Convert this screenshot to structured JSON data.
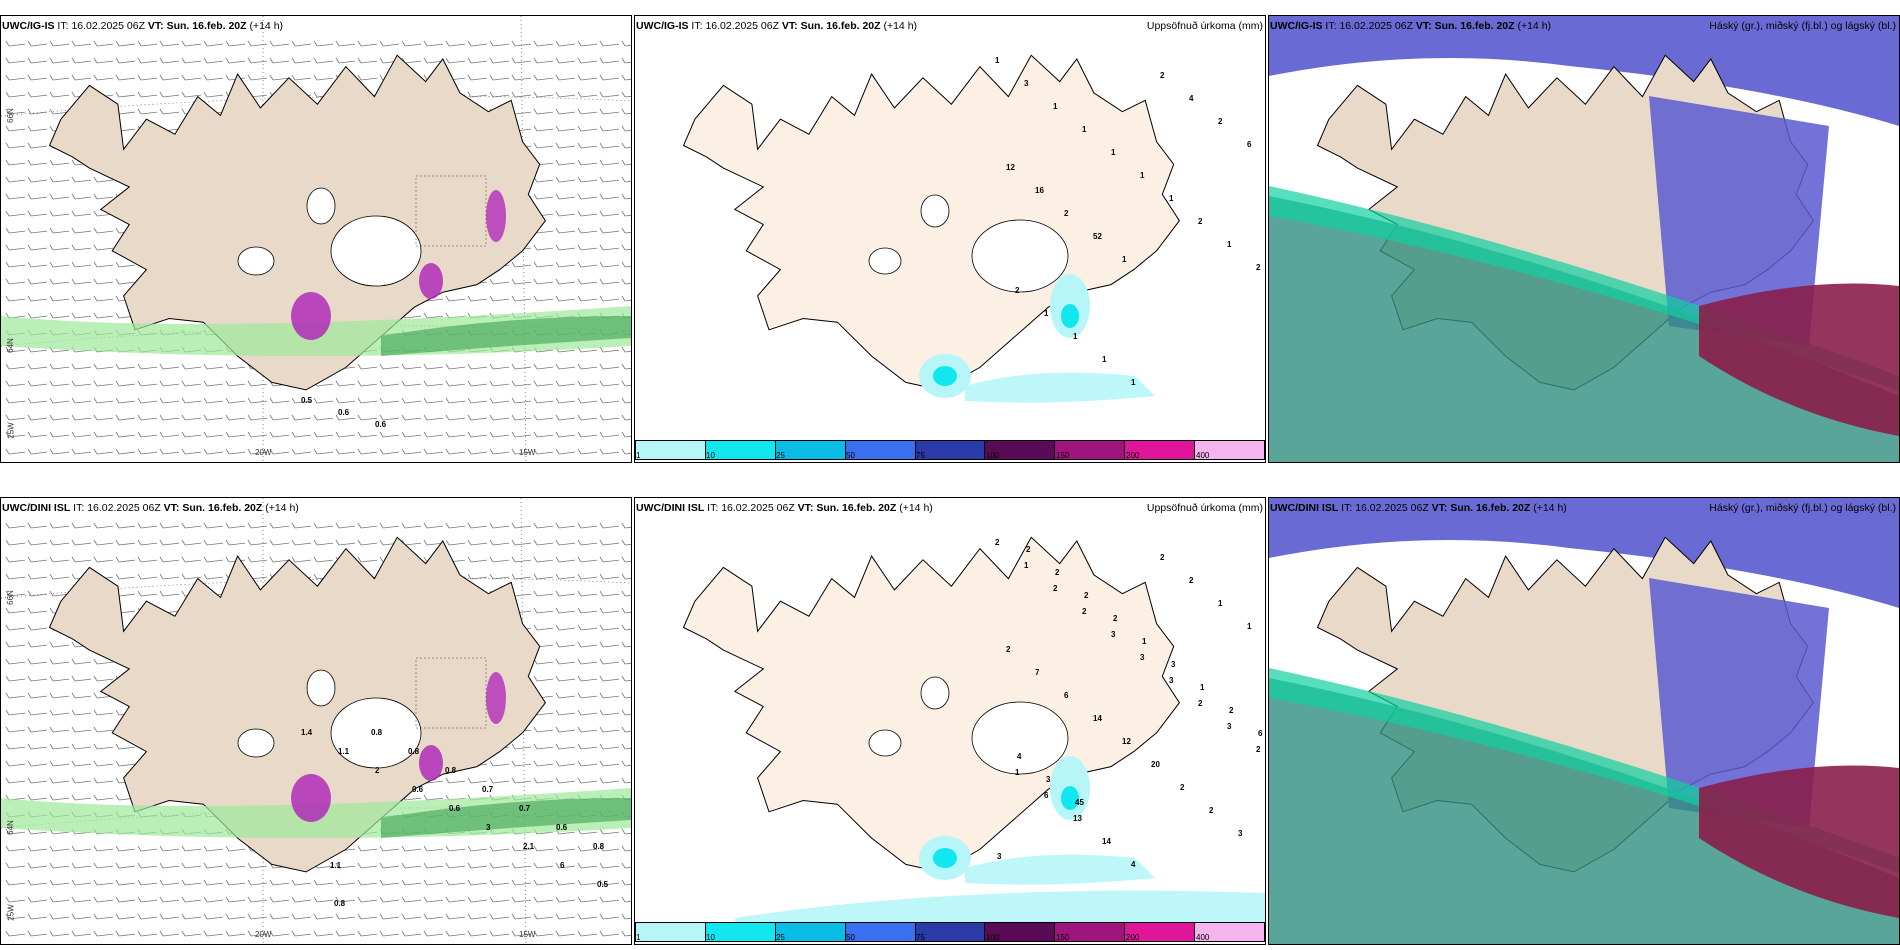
{
  "top_row": {
    "wind_panel": {
      "model": "UWC/IG-IS",
      "it_label": "IT:",
      "it_value": "16.02.2025 06Z",
      "vt_label": "VT:",
      "vt_value": "Sun. 16.feb. 20Z",
      "lead": "(+14 h)",
      "lat_labels": [
        "66N",
        "64N",
        "25W"
      ],
      "lon_labels": [
        "20W",
        "15W"
      ],
      "values": [
        "0.5",
        "0.6",
        "0.6"
      ]
    },
    "precip_panel": {
      "model": "UWC/IG-IS",
      "it_label": "IT:",
      "it_value": "16.02.2025 06Z",
      "vt_label": "VT:",
      "vt_value": "Sun. 16.feb. 20Z",
      "lead": "(+14 h)",
      "title": "Uppsöfnuð úrkoma (mm)",
      "values": [
        "1",
        "3",
        "1",
        "1",
        "1",
        "1",
        "1",
        "2",
        "1",
        "2",
        "2",
        "1",
        "1",
        "1",
        "1",
        "2",
        "4",
        "2",
        "6",
        "12",
        "16",
        "2",
        "52",
        "1"
      ]
    },
    "cloud_panel": {
      "model": "UWC/IG-IS",
      "it_label": "IT:",
      "it_value": "16.02.2025 06Z",
      "vt_label": "VT:",
      "vt_value": "Sun. 16.feb. 20Z",
      "lead": "(+14 h)",
      "title": "Háský (gr.), miðský (fj.bl.) og lágský (bl.)"
    }
  },
  "bottom_row": {
    "wind_panel": {
      "model": "UWC/DINI ISL",
      "it_label": "IT:",
      "it_value": "16.02.2025 06Z",
      "vt_label": "VT:",
      "vt_value": "Sun. 16.feb. 20Z",
      "lead": "(+14 h)",
      "lat_labels": [
        "66N",
        "64N",
        "25W"
      ],
      "lon_labels": [
        "20W",
        "15W"
      ],
      "values": [
        "1.4",
        "1.1",
        "2",
        "0.6",
        "0.6",
        "3",
        "2.1",
        "6",
        "0.5",
        "0.8",
        "0.8",
        "0.8",
        "0.8",
        "0.7",
        "0.7",
        "0.6",
        "0.8",
        "1.1"
      ]
    },
    "precip_panel": {
      "model": "UWC/DINI ISL",
      "it_label": "IT:",
      "it_value": "16.02.2025 06Z",
      "vt_label": "VT:",
      "vt_value": "Sun. 16.feb. 20Z",
      "lead": "(+14 h)",
      "title": "Uppsöfnuð úrkoma (mm)",
      "values": [
        "2",
        "1",
        "2",
        "2",
        "3",
        "3",
        "3",
        "2",
        "3",
        "2",
        "1",
        "6",
        "13",
        "14",
        "4",
        "2",
        "2",
        "1",
        "1",
        "2",
        "7",
        "6",
        "14",
        "12",
        "20",
        "2",
        "2",
        "3",
        "3",
        "2",
        "2",
        "2",
        "2",
        "1",
        "3",
        "1",
        "2",
        "6",
        "4",
        "3",
        "45"
      ]
    },
    "cloud_panel": {
      "model": "UWC/DINI ISL",
      "it_label": "IT:",
      "it_value": "16.02.2025 06Z",
      "vt_label": "VT:",
      "vt_value": "Sun. 16.feb. 20Z",
      "lead": "(+14 h)",
      "title": "Háský (gr.), miðský (fj.bl.) og lágský (bl.)"
    }
  },
  "colorbar": {
    "ticks": [
      "1",
      "10",
      "25",
      "50",
      "75",
      "100",
      "150",
      "200",
      "400"
    ],
    "colors": [
      "#b7f6f8",
      "#12e6ee",
      "#0bbde6",
      "#3a6ff0",
      "#2a3aa8",
      "#5a0a56",
      "#a0147e",
      "#e0169a",
      "#f4b4ee"
    ]
  },
  "palette": {
    "land": "#e8d9c8",
    "precip_land": "#fcefe3",
    "cloud_high": "#5a5ad0",
    "cloud_mid": "#2f8f80",
    "cloud_low": "#8a1e4a",
    "wind_green": "#9ee89a",
    "wind_purple": "#b02cb8"
  }
}
